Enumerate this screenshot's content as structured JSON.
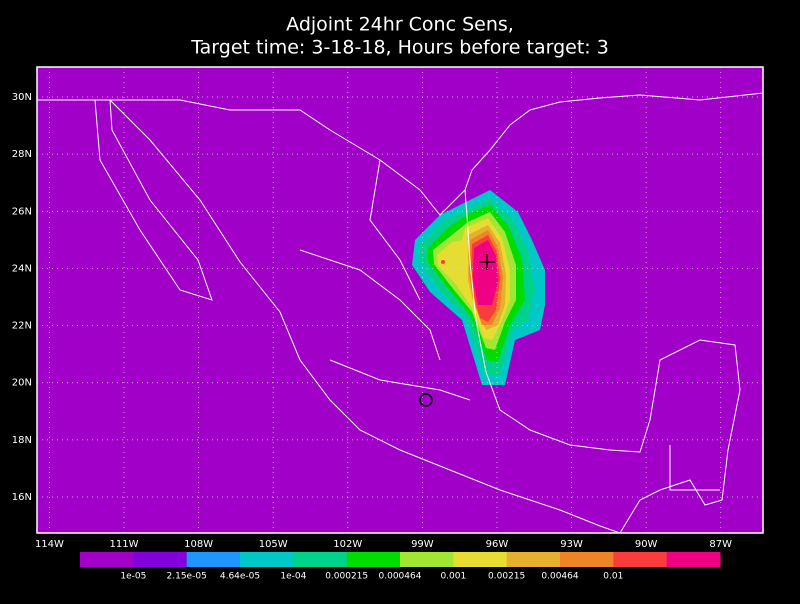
{
  "map": {
    "title": [
      "Adjoint 24hr Conc Sens,",
      "Target time: 3-18-18, Hours before target: 3"
    ],
    "background": "#a000c8",
    "xlim": [
      -114.5,
      -85.3
    ],
    "ylim": [
      14.74,
      31.05
    ],
    "xticks": [
      {
        "value": -114,
        "label": "114W"
      },
      {
        "value": -111,
        "label": "111W"
      },
      {
        "value": -108,
        "label": "108W"
      },
      {
        "value": -105,
        "label": "105W"
      },
      {
        "value": -102,
        "label": "102W"
      },
      {
        "value": -99,
        "label": "99W"
      },
      {
        "value": -96,
        "label": "96W"
      },
      {
        "value": -93,
        "label": "93W"
      },
      {
        "value": -90,
        "label": "90W"
      },
      {
        "value": -87,
        "label": "87W"
      }
    ],
    "yticks": [
      {
        "value": 16,
        "label": "16N"
      },
      {
        "value": 18,
        "label": "18N"
      },
      {
        "value": 20,
        "label": "20N"
      },
      {
        "value": 22,
        "label": "22N"
      },
      {
        "value": 24,
        "label": "24N"
      },
      {
        "value": 26,
        "label": "26N"
      },
      {
        "value": 28,
        "label": "28N"
      },
      {
        "value": 30,
        "label": "30N"
      }
    ],
    "grid": true,
    "colorbar": {
      "colors": [
        "#a000c8",
        "#8200dc",
        "#1e96ff",
        "#00c8c8",
        "#00d28c",
        "#00dc00",
        "#a0e632",
        "#e6dc32",
        "#e6af2d",
        "#f08228",
        "#fa3c3c",
        "#f00082"
      ],
      "levels": [
        {
          "value": 1e-05,
          "label": "1e-05"
        },
        {
          "value": 2.15e-05,
          "label": "2.15e-05"
        },
        {
          "value": 4.64e-05,
          "label": "4.64e-05"
        },
        {
          "value": 0.0001,
          "label": "1e-04"
        },
        0.000215,
        0.000464,
        0.001,
        0.00215,
        0.00464,
        0.01
      ]
    }
  }
}
